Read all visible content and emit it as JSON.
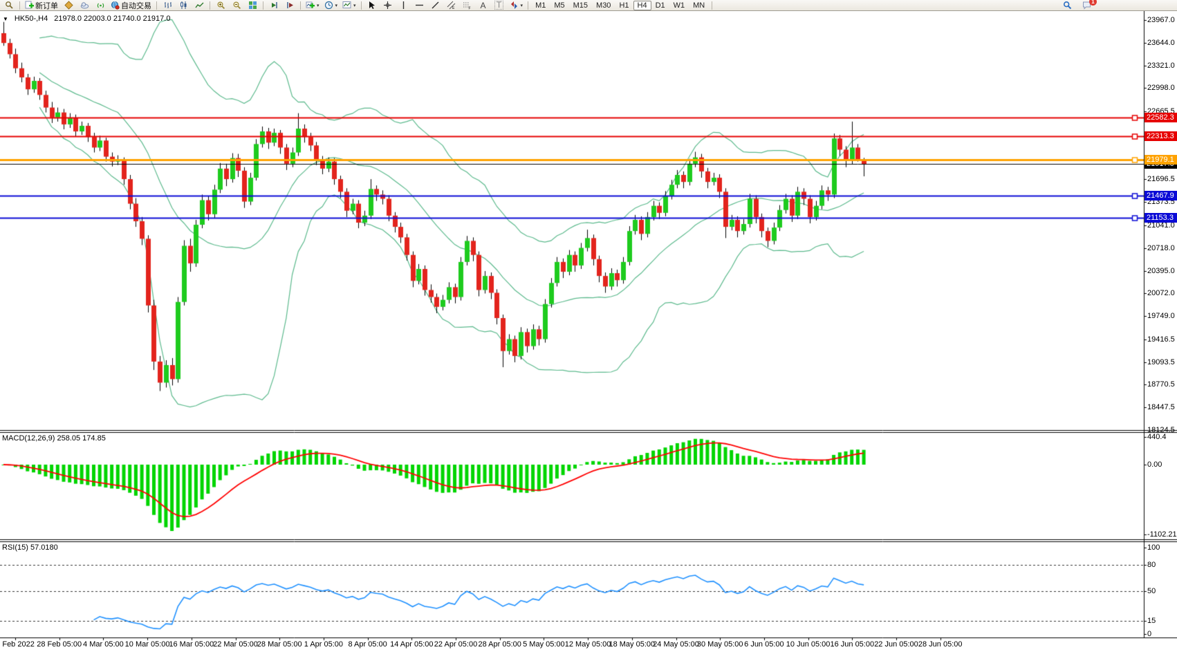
{
  "toolbar": {
    "new_order_label": "新订单",
    "autotrade_label": "自动交易",
    "text_tool_label": "A",
    "label_tool_label": "T",
    "timeframes": [
      "M1",
      "M5",
      "M15",
      "M30",
      "H1",
      "H4",
      "D1",
      "W1",
      "MN"
    ],
    "active_timeframe": "H4",
    "notification_count": "1"
  },
  "chart": {
    "title": "HK50-,H4",
    "ohlc_line": "21978.0 22003.0 21740.0 21917.0",
    "macd_label": "MACD(12,26,9) 258.05 174.85",
    "rsi_label": "RSI(15) 57.0180",
    "price_axis_ticks": [
      "23967.0",
      "23644.0",
      "23321.0",
      "22998.0",
      "22665.5",
      "21696.5",
      "21373.5",
      "21041.0",
      "20718.0",
      "20395.0",
      "20072.0",
      "19749.0",
      "19416.5",
      "19093.5",
      "18770.5",
      "18447.5",
      "18124.5"
    ],
    "macd_axis_ticks": [
      {
        "label": "440.4",
        "value": 440.4
      },
      {
        "label": "0.00",
        "value": 0
      },
      {
        "label": "-1102.21",
        "value": -1102.21
      }
    ],
    "rsi_axis_ticks": [
      {
        "label": "100",
        "value": 100,
        "dashed": false
      },
      {
        "label": "80",
        "value": 80,
        "dashed": true
      },
      {
        "label": "50",
        "value": 50,
        "dashed": true
      },
      {
        "label": "15",
        "value": 15,
        "dashed": true
      },
      {
        "label": "0",
        "value": 0,
        "dashed": false
      }
    ],
    "time_axis_labels": [
      "2 Feb 2022",
      "28 Feb 05:00",
      "4 Mar 05:00",
      "10 Mar 05:00",
      "16 Mar 05:00",
      "22 Mar 05:00",
      "28 Mar 05:00",
      "1 Apr 05:00",
      "8 Apr 05:00",
      "14 Apr 05:00",
      "22 Apr 05:00",
      "28 Apr 05:00",
      "5 May 05:00",
      "12 May 05:00",
      "18 May 05:00",
      "24 May 05:00",
      "30 May 05:00",
      "6 Jun 05:00",
      "10 Jun 05:00",
      "16 Jun 05:00",
      "22 Jun 05:00",
      "28 Jun 05:00"
    ],
    "price_lines": [
      {
        "price": 22582.3,
        "label": "22582.3",
        "color": "#e60000",
        "width": 2
      },
      {
        "price": 22313.3,
        "label": "22313.3",
        "color": "#e60000",
        "width": 2
      },
      {
        "price": 21467.9,
        "label": "21467.9",
        "color": "#0b0bd6",
        "width": 2
      },
      {
        "price": 21153.3,
        "label": "21153.3",
        "color": "#0b0bd6",
        "width": 2
      },
      {
        "price": 21979.1,
        "label": "21979.1",
        "color": "#ffa200",
        "width": 3
      }
    ],
    "current_price": {
      "price": 21917.0,
      "label": "21917.0",
      "color": "#000000"
    }
  },
  "colors": {
    "candle_up": "#1ecb1e",
    "candle_down": "#e3241d",
    "wick": "#000000",
    "bollinger": "#5bb98c",
    "macd_hist": "#00d500",
    "macd_signal": "#ff0000",
    "rsi_line": "#1e90ff",
    "dashed_level": "#333333"
  },
  "chart_data": {
    "type": "candlestick",
    "symbol": "HK50-",
    "period": "H4",
    "title": "HK50-,H4 21978.0 22003.0 21740.0 21917.0",
    "indicators": [
      "Bollinger Bands(20,2)",
      "MACD(12,26,9) = 258.05 / 174.85",
      "RSI(15) = 57.0180"
    ],
    "price_range": [
      18124.5,
      23967.0
    ],
    "macd_range": [
      -1102.21,
      440.4
    ],
    "rsi_range": [
      0,
      100
    ],
    "horizontal_levels": [
      22582.3,
      22313.3,
      21979.1,
      21917.0,
      21467.9,
      21153.3
    ],
    "x_ticks": [
      "2 Feb 2022",
      "28 Feb 05:00",
      "4 Mar 05:00",
      "10 Mar 05:00",
      "16 Mar 05:00",
      "22 Mar 05:00",
      "28 Mar 05:00",
      "1 Apr 05:00",
      "8 Apr 05:00",
      "14 Apr 05:00",
      "22 Apr 05:00",
      "28 Apr 05:00",
      "5 May 05:00",
      "12 May 05:00",
      "18 May 05:00",
      "24 May 05:00",
      "30 May 05:00",
      "6 Jun 05:00",
      "10 Jun 05:00",
      "16 Jun 05:00",
      "22 Jun 05:00",
      "28 Jun 05:00"
    ],
    "candles": [
      [
        23780,
        23940,
        23600,
        23640
      ],
      [
        23640,
        23700,
        23420,
        23480
      ],
      [
        23480,
        23560,
        23210,
        23280
      ],
      [
        23280,
        23360,
        23080,
        23150
      ],
      [
        23150,
        23200,
        22900,
        22980
      ],
      [
        22980,
        23160,
        22930,
        23100
      ],
      [
        23100,
        23140,
        22830,
        22900
      ],
      [
        22900,
        22960,
        22650,
        22720
      ],
      [
        22720,
        22800,
        22500,
        22580
      ],
      [
        22580,
        22720,
        22520,
        22650
      ],
      [
        22650,
        22700,
        22410,
        22480
      ],
      [
        22480,
        22640,
        22430,
        22570
      ],
      [
        22570,
        22620,
        22310,
        22380
      ],
      [
        22380,
        22520,
        22330,
        22460
      ],
      [
        22460,
        22500,
        22230,
        22300
      ],
      [
        22300,
        22360,
        22080,
        22150
      ],
      [
        22150,
        22320,
        22100,
        22250
      ],
      [
        22250,
        22290,
        21950,
        22020
      ],
      [
        22020,
        22080,
        21880,
        21950
      ],
      [
        21950,
        22040,
        21900,
        21980
      ],
      [
        21980,
        22010,
        21620,
        21700
      ],
      [
        21700,
        21760,
        21270,
        21350
      ],
      [
        21350,
        21430,
        21020,
        21100
      ],
      [
        21100,
        21160,
        20760,
        20850
      ],
      [
        20850,
        20900,
        19800,
        19900
      ],
      [
        19900,
        19980,
        18980,
        19100
      ],
      [
        19100,
        19180,
        18680,
        18800
      ],
      [
        18800,
        19120,
        18730,
        19050
      ],
      [
        19050,
        19150,
        18760,
        18850
      ],
      [
        18850,
        20020,
        18800,
        19950
      ],
      [
        19950,
        20830,
        19900,
        20750
      ],
      [
        20750,
        20850,
        20380,
        20500
      ],
      [
        20500,
        21120,
        20450,
        21050
      ],
      [
        21050,
        21480,
        21000,
        21400
      ],
      [
        21400,
        21460,
        21110,
        21200
      ],
      [
        21200,
        21620,
        21150,
        21550
      ],
      [
        21550,
        21930,
        21500,
        21850
      ],
      [
        21850,
        21920,
        21600,
        21700
      ],
      [
        21700,
        22070,
        21650,
        22000
      ],
      [
        22000,
        22060,
        21730,
        21820
      ],
      [
        21820,
        21870,
        21290,
        21380
      ],
      [
        21380,
        21790,
        21330,
        21720
      ],
      [
        21720,
        22270,
        21680,
        22200
      ],
      [
        22200,
        22450,
        22150,
        22380
      ],
      [
        22380,
        22430,
        22130,
        22220
      ],
      [
        22220,
        22420,
        22170,
        22360
      ],
      [
        22360,
        22400,
        22060,
        22150
      ],
      [
        22150,
        22200,
        21830,
        21920
      ],
      [
        21920,
        22150,
        21870,
        22080
      ],
      [
        22080,
        22640,
        22030,
        22420
      ],
      [
        22420,
        22480,
        22220,
        22300
      ],
      [
        22300,
        22360,
        22100,
        22180
      ],
      [
        22180,
        22230,
        21900,
        21980
      ],
      [
        21980,
        22030,
        21770,
        21850
      ],
      [
        21850,
        22010,
        21800,
        21950
      ],
      [
        21950,
        22000,
        21620,
        21700
      ],
      [
        21700,
        21750,
        21430,
        21520
      ],
      [
        21520,
        21570,
        21160,
        21250
      ],
      [
        21250,
        21420,
        21200,
        21350
      ],
      [
        21350,
        21400,
        21000,
        21080
      ],
      [
        21080,
        21250,
        21030,
        21180
      ],
      [
        21180,
        21700,
        21130,
        21560
      ],
      [
        21560,
        21610,
        21390,
        21480
      ],
      [
        21480,
        21540,
        21340,
        21420
      ],
      [
        21420,
        21470,
        21100,
        21180
      ],
      [
        21180,
        21230,
        20940,
        21020
      ],
      [
        21020,
        21080,
        20790,
        20870
      ],
      [
        20870,
        20920,
        20540,
        20620
      ],
      [
        20620,
        20670,
        20160,
        20250
      ],
      [
        20250,
        20490,
        20200,
        20420
      ],
      [
        20420,
        20470,
        20040,
        20120
      ],
      [
        20120,
        20200,
        19940,
        20020
      ],
      [
        20020,
        20070,
        19790,
        19880
      ],
      [
        19880,
        20050,
        19830,
        19980
      ],
      [
        19980,
        20230,
        19930,
        20160
      ],
      [
        20160,
        20210,
        19930,
        20020
      ],
      [
        20020,
        20590,
        19970,
        20520
      ],
      [
        20520,
        20890,
        20470,
        20820
      ],
      [
        20820,
        20870,
        20530,
        20620
      ],
      [
        20620,
        20670,
        20030,
        20120
      ],
      [
        20120,
        20390,
        20070,
        20320
      ],
      [
        20320,
        20370,
        19990,
        20080
      ],
      [
        20080,
        20130,
        19630,
        19720
      ],
      [
        19720,
        19770,
        19020,
        19250
      ],
      [
        19250,
        19490,
        19200,
        19420
      ],
      [
        19420,
        19470,
        19090,
        19180
      ],
      [
        19180,
        19590,
        19130,
        19520
      ],
      [
        19520,
        19570,
        19230,
        19320
      ],
      [
        19320,
        19630,
        19270,
        19560
      ],
      [
        19560,
        19610,
        19330,
        19420
      ],
      [
        19420,
        19990,
        19370,
        19920
      ],
      [
        19920,
        20290,
        19870,
        20220
      ],
      [
        20220,
        20590,
        20170,
        20520
      ],
      [
        20520,
        20570,
        20290,
        20380
      ],
      [
        20380,
        20690,
        20330,
        20620
      ],
      [
        20620,
        20670,
        20380,
        20470
      ],
      [
        20470,
        20790,
        20420,
        20720
      ],
      [
        20720,
        20980,
        20670,
        20860
      ],
      [
        20860,
        20910,
        20470,
        20560
      ],
      [
        20560,
        20610,
        20230,
        20320
      ],
      [
        20320,
        20370,
        20080,
        20170
      ],
      [
        20170,
        20430,
        20120,
        20360
      ],
      [
        20360,
        20410,
        20170,
        20260
      ],
      [
        20260,
        20590,
        20210,
        20520
      ],
      [
        20520,
        21030,
        20470,
        20960
      ],
      [
        20960,
        21190,
        20910,
        21120
      ],
      [
        21120,
        21170,
        20830,
        20920
      ],
      [
        20920,
        21230,
        20870,
        21160
      ],
      [
        21160,
        21390,
        21110,
        21320
      ],
      [
        21320,
        21370,
        21130,
        21220
      ],
      [
        21220,
        21530,
        21170,
        21460
      ],
      [
        21460,
        21690,
        21410,
        21620
      ],
      [
        21620,
        21830,
        21570,
        21760
      ],
      [
        21760,
        21810,
        21570,
        21660
      ],
      [
        21660,
        21990,
        21610,
        21920
      ],
      [
        21920,
        22090,
        21870,
        22010
      ],
      [
        22010,
        22060,
        21720,
        21810
      ],
      [
        21810,
        21860,
        21570,
        21660
      ],
      [
        21660,
        21790,
        21610,
        21720
      ],
      [
        21720,
        21770,
        21430,
        21520
      ],
      [
        21520,
        21570,
        20860,
        21020
      ],
      [
        21020,
        21190,
        20970,
        21120
      ],
      [
        21120,
        21170,
        20870,
        20960
      ],
      [
        20960,
        21130,
        20910,
        21060
      ],
      [
        21060,
        21490,
        21010,
        21420
      ],
      [
        21420,
        21470,
        21070,
        21160
      ],
      [
        21160,
        21210,
        20870,
        20960
      ],
      [
        20960,
        21010,
        20730,
        20820
      ],
      [
        20820,
        21080,
        20770,
        21010
      ],
      [
        21010,
        21330,
        20960,
        21260
      ],
      [
        21260,
        21490,
        21210,
        21420
      ],
      [
        21420,
        21470,
        21090,
        21180
      ],
      [
        21180,
        21590,
        21130,
        21520
      ],
      [
        21520,
        21570,
        21330,
        21420
      ],
      [
        21420,
        21470,
        21070,
        21160
      ],
      [
        21160,
        21390,
        21110,
        21320
      ],
      [
        21320,
        21610,
        21270,
        21540
      ],
      [
        21540,
        21590,
        21390,
        21480
      ],
      [
        21480,
        22350,
        21430,
        22280
      ],
      [
        22280,
        22330,
        22030,
        22120
      ],
      [
        22120,
        22170,
        21870,
        21960
      ],
      [
        21960,
        22520,
        21910,
        22150
      ],
      [
        22150,
        22200,
        21950,
        21978
      ],
      [
        21978,
        22003,
        21740,
        21917
      ]
    ]
  }
}
